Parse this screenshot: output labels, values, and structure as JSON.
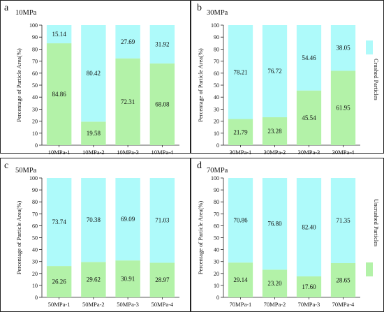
{
  "figure": {
    "legend": [
      {
        "label": "Crushed Particles",
        "color": "#aefafa"
      },
      {
        "label": "Uncrushed Particles",
        "color": "#b3f2a8"
      }
    ]
  },
  "chart_data": [
    {
      "type": "bar",
      "stacked": true,
      "panel_letter": "a",
      "panel_title": "10MPa",
      "ylabel": "Percentage of Particle Area(%)",
      "ylim": [
        0,
        100
      ],
      "yticks": [
        0,
        10,
        20,
        30,
        40,
        50,
        60,
        70,
        80,
        90,
        100
      ],
      "categories": [
        "10MPa-1",
        "10MPa-2",
        "10MPa-3",
        "10MPa-4"
      ],
      "series": [
        {
          "name": "Uncrushed Particles",
          "color": "#b3f2a8",
          "values": [
            84.86,
            19.58,
            72.31,
            68.08
          ]
        },
        {
          "name": "Crushed Particles",
          "color": "#aefafa",
          "values": [
            15.14,
            80.42,
            27.69,
            31.92
          ]
        }
      ]
    },
    {
      "type": "bar",
      "stacked": true,
      "panel_letter": "b",
      "panel_title": "30MPa",
      "ylabel": "Percentage of Particle Area(%)",
      "ylim": [
        0,
        100
      ],
      "yticks": [
        0,
        10,
        20,
        30,
        40,
        50,
        60,
        70,
        80,
        90,
        100
      ],
      "categories": [
        "30MPa-1",
        "30MPa-2",
        "30MPa-3",
        "30MPa-4"
      ],
      "series": [
        {
          "name": "Uncrushed Particles",
          "color": "#b3f2a8",
          "values": [
            21.79,
            23.28,
            45.54,
            61.95
          ]
        },
        {
          "name": "Crushed Particles",
          "color": "#aefafa",
          "values": [
            78.21,
            76.72,
            54.46,
            38.05
          ]
        }
      ]
    },
    {
      "type": "bar",
      "stacked": true,
      "panel_letter": "c",
      "panel_title": "50MPa",
      "ylabel": "Percentage of Particle Area(%)",
      "ylim": [
        0,
        100
      ],
      "yticks": [
        0,
        10,
        20,
        30,
        40,
        50,
        60,
        70,
        80,
        90,
        100
      ],
      "categories": [
        "50MPa-1",
        "50MPa-2",
        "50MPa-3",
        "50MPa-4"
      ],
      "series": [
        {
          "name": "Uncrushed Particles",
          "color": "#b3f2a8",
          "values": [
            26.26,
            29.62,
            30.91,
            28.97
          ]
        },
        {
          "name": "Crushed Particles",
          "color": "#aefafa",
          "values": [
            73.74,
            70.38,
            69.09,
            71.03
          ]
        }
      ]
    },
    {
      "type": "bar",
      "stacked": true,
      "panel_letter": "d",
      "panel_title": "70MPa",
      "ylabel": "Percentage of Particle Area(%)",
      "ylim": [
        0,
        100
      ],
      "yticks": [
        0,
        10,
        20,
        30,
        40,
        50,
        60,
        70,
        80,
        90,
        100
      ],
      "categories": [
        "70MPa-1",
        "70MPa-2",
        "70MPa-3",
        "70MPa-4"
      ],
      "series": [
        {
          "name": "Uncrushed Particles",
          "color": "#b3f2a8",
          "values": [
            29.14,
            23.2,
            17.6,
            28.65
          ]
        },
        {
          "name": "Crushed Particles",
          "color": "#aefafa",
          "values": [
            70.86,
            76.8,
            82.4,
            71.35
          ]
        }
      ]
    }
  ]
}
